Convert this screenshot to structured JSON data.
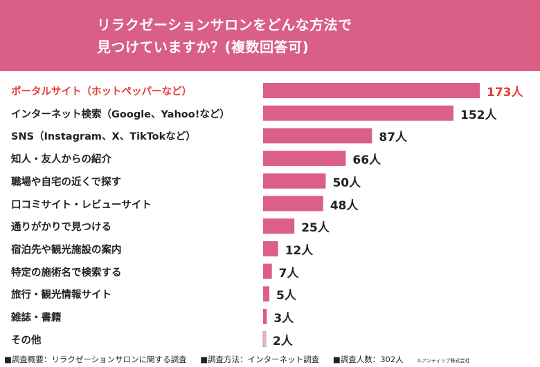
{
  "title": {
    "line1": "リラクゼーションサロンをどんな方法で",
    "line2": "見つけていますか？(複数回答可)"
  },
  "colors": {
    "header": "#d95f87",
    "bar": "#dc5f8a",
    "highlight": "#e53935",
    "other_bar": "#e9b6c7"
  },
  "chart_data": {
    "type": "bar",
    "orientation": "horizontal",
    "categories": [
      "ポータルサイト（ホットペッパーなど）",
      "インターネット検索（Google、Yahoo!など）",
      "SNS（Instagram、X、TikTokなど）",
      "知人・友人からの紹介",
      "職場や自宅の近くで探す",
      "口コミサイト・レビューサイト",
      "通りがかりで見つける",
      "宿泊先や観光施設の案内",
      "特定の施術名で検索する",
      "旅行・観光情報サイト",
      "雑誌・書籍",
      "その他"
    ],
    "values": [
      173,
      152,
      87,
      66,
      50,
      48,
      25,
      12,
      7,
      5,
      3,
      2
    ],
    "value_labels": [
      "173人",
      "152人",
      "87人",
      "66人",
      "50人",
      "48人",
      "25人",
      "12人",
      "7人",
      "5人",
      "3人",
      "2人"
    ],
    "unit": "人",
    "highlighted_index": 0
  },
  "footer": {
    "overview": "■調査概要：リラクゼーションサロンに関する調査",
    "method": "■調査方法：インターネット調査",
    "respondents": "■調査人数：302人",
    "company": "ルアンティップ株式会社"
  }
}
